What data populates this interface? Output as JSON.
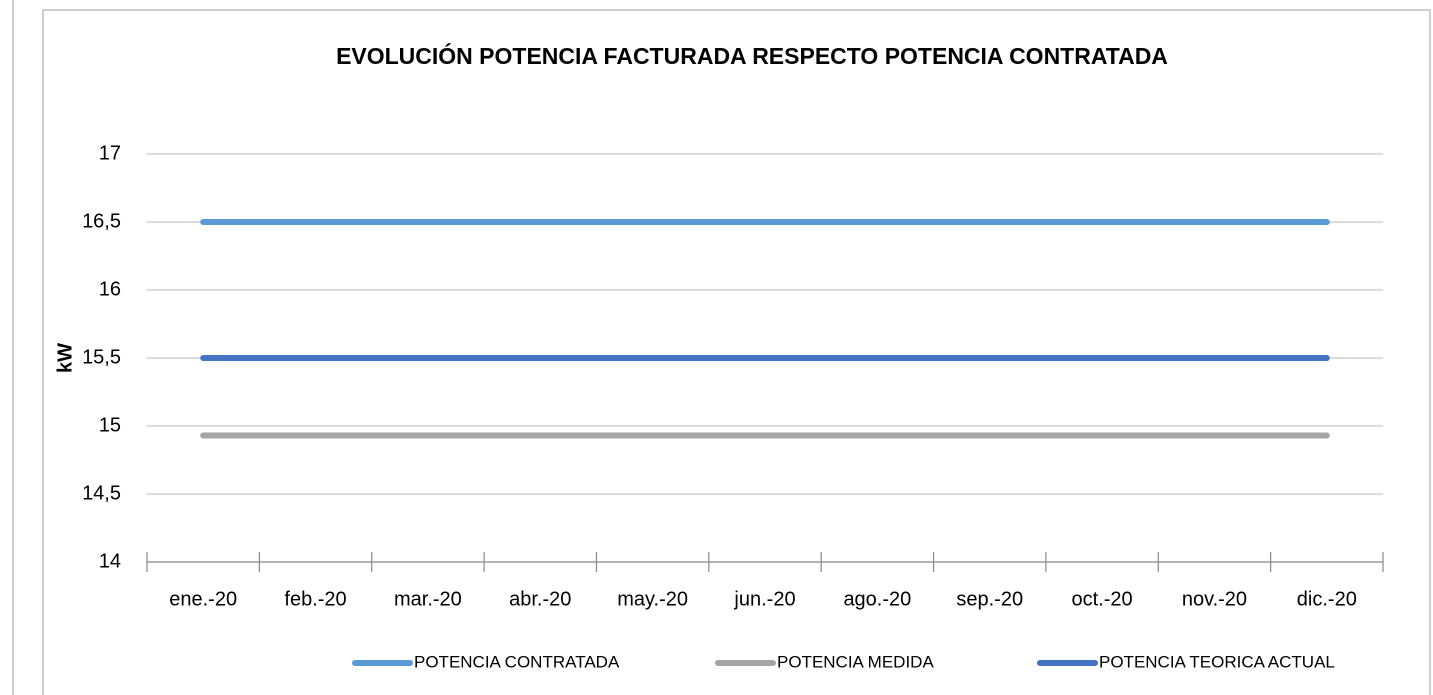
{
  "chart_data": {
    "type": "line",
    "title": "EVOLUCIÓN POTENCIA FACTURADA RESPECTO POTENCIA CONTRATADA",
    "y_label": "kW",
    "categories": [
      "ene.-20",
      "feb.-20",
      "mar.-20",
      "abr.-20",
      "may.-20",
      "jun.-20",
      "ago.-20",
      "sep.-20",
      "oct.-20",
      "nov.-20",
      "dic.-20"
    ],
    "series": [
      {
        "name": "POTENCIA CONTRATADA",
        "color": "#5b9bd5",
        "values": [
          16.5,
          16.5,
          16.5,
          16.5,
          16.5,
          16.5,
          16.5,
          16.5,
          16.5,
          16.5,
          16.5
        ]
      },
      {
        "name": "POTENCIA MEDIDA",
        "color": "#a5a5a5",
        "values": [
          14.93,
          14.93,
          14.93,
          14.93,
          14.93,
          14.93,
          14.93,
          14.93,
          14.93,
          14.93,
          14.93
        ]
      },
      {
        "name": "POTENCIA TEORICA ACTUAL",
        "color": "#4472c4",
        "values": [
          15.5,
          15.5,
          15.5,
          15.5,
          15.5,
          15.5,
          15.5,
          15.5,
          15.5,
          15.5,
          15.5
        ]
      }
    ],
    "ylim": [
      14,
      17
    ],
    "yticks": [
      14,
      {
        "value": 14.5,
        "label": "14,5"
      },
      15,
      {
        "value": 15.5,
        "label": "15,5"
      },
      16,
      {
        "value": 16.5,
        "label": "16,5"
      },
      17
    ],
    "grid": true,
    "legend": "bottom"
  }
}
